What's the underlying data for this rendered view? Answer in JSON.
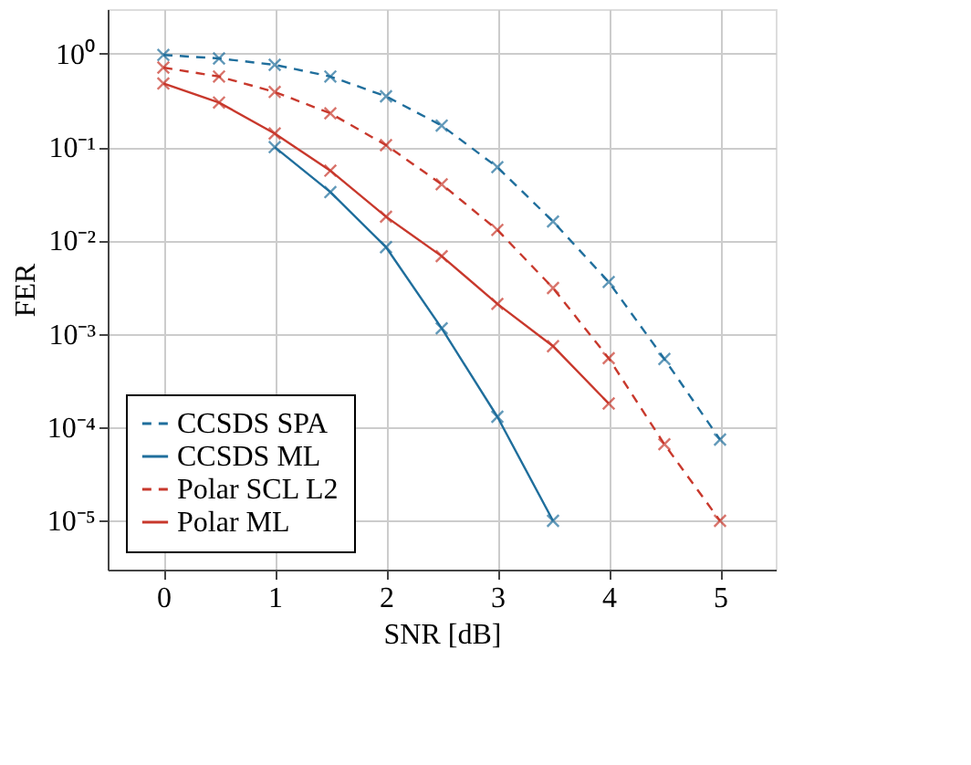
{
  "chart_data": {
    "type": "line",
    "xlabel": "SNR [dB]",
    "ylabel": "FER",
    "log": "y",
    "grid": true,
    "legend": "bottom left",
    "marker": "cross",
    "xlim": [
      -0.5,
      5.5
    ],
    "xticks": [
      0,
      1,
      2,
      3,
      4,
      5
    ],
    "ylim": [
      3e-06,
      3
    ],
    "yticks": [
      {
        "value": 1,
        "label": "10⁰"
      },
      {
        "value": 0.1,
        "label": "10⁻¹"
      },
      {
        "value": 0.01,
        "label": "10⁻²"
      },
      {
        "value": 0.001,
        "label": "10⁻³"
      },
      {
        "value": 0.0001,
        "label": "10⁻⁴"
      },
      {
        "value": 1e-05,
        "label": "10⁻⁵"
      }
    ],
    "series": [
      {
        "name": "CCSDS SPA",
        "color": "#1f6e9c",
        "line_style": "dashed",
        "x": [
          0,
          0.5,
          1,
          1.5,
          2,
          2.5,
          3,
          3.5,
          4,
          4.5,
          5
        ],
        "values": [
          0.97,
          0.89,
          0.76,
          0.57,
          0.35,
          0.17,
          0.061,
          0.016,
          0.0036,
          0.00054,
          7.4e-05
        ]
      },
      {
        "name": "CCSDS ML",
        "color": "#1f6e9c",
        "line_style": "solid",
        "x": [
          1,
          1.5,
          2,
          2.5,
          3,
          3.5
        ],
        "values": [
          0.1,
          0.033,
          0.0085,
          0.00115,
          0.00013,
          1e-05
        ]
      },
      {
        "name": "Polar SCL L2",
        "color": "#c8382c",
        "line_style": "dashed",
        "x": [
          0,
          0.5,
          1,
          1.5,
          2,
          2.5,
          3,
          3.5,
          4,
          4.5,
          5
        ],
        "values": [
          0.71,
          0.57,
          0.39,
          0.23,
          0.105,
          0.04,
          0.013,
          0.0031,
          0.00055,
          6.6e-05,
          1e-05
        ]
      },
      {
        "name": "Polar ML",
        "color": "#c8382c",
        "line_style": "solid",
        "x": [
          0,
          0.5,
          1,
          1.5,
          2,
          2.5,
          3,
          3.5,
          4
        ],
        "values": [
          0.48,
          0.3,
          0.14,
          0.056,
          0.018,
          0.0068,
          0.0021,
          0.00074,
          0.00018
        ]
      }
    ]
  }
}
